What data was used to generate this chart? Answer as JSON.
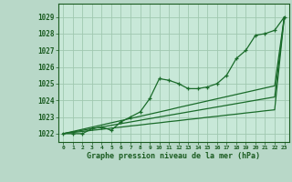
{
  "xlabel": "Graphe pression niveau de la mer (hPa)",
  "background_color": "#b8d8c8",
  "plot_bg_color": "#c8e8d8",
  "grid_color": "#a0c8b0",
  "line_color": "#1a6b2a",
  "xlim": [
    -0.5,
    23.5
  ],
  "ylim": [
    1021.5,
    1029.8
  ],
  "yticks": [
    1022,
    1023,
    1024,
    1025,
    1026,
    1027,
    1028,
    1029
  ],
  "xticks": [
    0,
    1,
    2,
    3,
    4,
    5,
    6,
    7,
    8,
    9,
    10,
    11,
    12,
    13,
    14,
    15,
    16,
    17,
    18,
    19,
    20,
    21,
    22,
    23
  ],
  "line_straight1": [
    1022.0,
    1022.07,
    1022.13,
    1022.2,
    1022.26,
    1022.33,
    1022.39,
    1022.46,
    1022.52,
    1022.59,
    1022.65,
    1022.72,
    1022.78,
    1022.85,
    1022.91,
    1022.98,
    1023.04,
    1023.11,
    1023.17,
    1023.24,
    1023.3,
    1023.37,
    1023.43,
    1029.0
  ],
  "line_straight2": [
    1022.0,
    1022.1,
    1022.2,
    1022.3,
    1022.4,
    1022.5,
    1022.6,
    1022.7,
    1022.8,
    1022.9,
    1023.0,
    1023.1,
    1023.2,
    1023.3,
    1023.4,
    1023.5,
    1023.6,
    1023.7,
    1023.8,
    1023.9,
    1024.0,
    1024.1,
    1024.2,
    1029.0
  ],
  "line_straight3": [
    1022.0,
    1022.13,
    1022.26,
    1022.39,
    1022.52,
    1022.65,
    1022.78,
    1022.91,
    1023.04,
    1023.17,
    1023.3,
    1023.43,
    1023.57,
    1023.7,
    1023.83,
    1023.96,
    1024.09,
    1024.22,
    1024.35,
    1024.48,
    1024.61,
    1024.74,
    1024.87,
    1029.0
  ],
  "line_wavy": [
    1022.0,
    1022.0,
    1022.0,
    1022.3,
    1022.4,
    1022.2,
    1022.7,
    1023.0,
    1023.3,
    1024.1,
    1025.3,
    1025.2,
    1025.0,
    1024.7,
    1024.7,
    1024.8,
    1025.0,
    1025.5,
    1026.5,
    1027.0,
    1027.9,
    1028.0,
    1028.2,
    1029.0
  ]
}
